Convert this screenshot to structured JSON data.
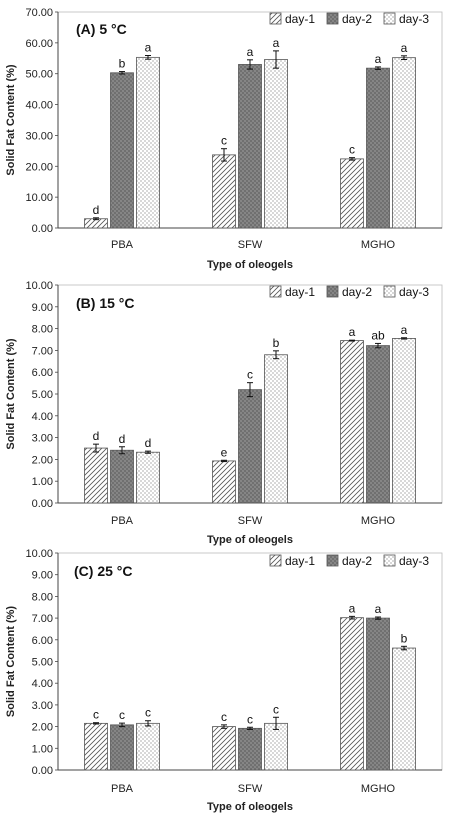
{
  "chart_data": [
    {
      "type": "bar",
      "title": "(A) 5 °C",
      "xlabel": "Type of oleogels",
      "ylabel": "Solid Fat Content (%)",
      "ylim": [
        0,
        70
      ],
      "ytick_step": 10,
      "ytick_labels": [
        "0.00",
        "10.00",
        "20.00",
        "30.00",
        "40.00",
        "50.00",
        "60.00",
        "70.00"
      ],
      "categories": [
        "PBA",
        "SFW",
        "MGHO"
      ],
      "series": [
        {
          "name": "day-1",
          "values": [
            3.0,
            23.7,
            22.4
          ],
          "errors": [
            0.3,
            2.0,
            0.4
          ],
          "letters": [
            "d",
            "c",
            "c"
          ]
        },
        {
          "name": "day-2",
          "values": [
            50.3,
            53.0,
            51.8
          ],
          "errors": [
            0.4,
            1.5,
            0.4
          ],
          "letters": [
            "b",
            "a",
            "a"
          ]
        },
        {
          "name": "day-3",
          "values": [
            55.3,
            54.6,
            55.2
          ],
          "errors": [
            0.6,
            2.8,
            0.6
          ],
          "letters": [
            "a",
            "a",
            "a"
          ]
        }
      ],
      "legend": "top-right",
      "grid": false
    },
    {
      "type": "bar",
      "title": "(B) 15 °C",
      "xlabel": "Type of oleogels",
      "ylabel": "Solid Fat Content (%)",
      "ylim": [
        0,
        10
      ],
      "ytick_step": 1,
      "ytick_labels": [
        "0.00",
        "1.00",
        "2.00",
        "3.00",
        "4.00",
        "5.00",
        "6.00",
        "7.00",
        "8.00",
        "9.00",
        "10.00"
      ],
      "categories": [
        "PBA",
        "SFW",
        "MGHO"
      ],
      "series": [
        {
          "name": "day-1",
          "values": [
            2.52,
            1.93,
            7.45
          ],
          "errors": [
            0.18,
            0.03,
            0.02
          ],
          "letters": [
            "d",
            "e",
            "a"
          ]
        },
        {
          "name": "day-2",
          "values": [
            2.42,
            5.2,
            7.22
          ],
          "errors": [
            0.16,
            0.32,
            0.1
          ],
          "letters": [
            "d",
            "c",
            "ab"
          ]
        },
        {
          "name": "day-3",
          "values": [
            2.33,
            6.8,
            7.55
          ],
          "errors": [
            0.05,
            0.18,
            0.03
          ],
          "letters": [
            "d",
            "b",
            "a"
          ]
        }
      ],
      "legend": "top-right",
      "grid": false
    },
    {
      "type": "bar",
      "title": "(C) 25 °C",
      "xlabel": "Type of oleogels",
      "ylabel": "Solid Fat Content (%)",
      "ylim": [
        0,
        10
      ],
      "ytick_step": 1,
      "ytick_labels": [
        "0.00",
        "1.00",
        "2.00",
        "3.00",
        "4.00",
        "5.00",
        "6.00",
        "7.00",
        "8.00",
        "9.00",
        "10.00"
      ],
      "categories": [
        "PBA",
        "SFW",
        "MGHO"
      ],
      "series": [
        {
          "name": "day-1",
          "values": [
            2.15,
            2.0,
            7.02
          ],
          "errors": [
            0.03,
            0.08,
            0.06
          ],
          "letters": [
            "c",
            "c",
            "a"
          ]
        },
        {
          "name": "day-2",
          "values": [
            2.08,
            1.92,
            7.0
          ],
          "errors": [
            0.08,
            0.05,
            0.05
          ],
          "letters": [
            "c",
            "c",
            "a"
          ]
        },
        {
          "name": "day-3",
          "values": [
            2.15,
            2.15,
            5.62
          ],
          "errors": [
            0.12,
            0.28,
            0.08
          ],
          "letters": [
            "c",
            "c",
            "b"
          ]
        }
      ],
      "legend": "top-right",
      "grid": false
    }
  ]
}
